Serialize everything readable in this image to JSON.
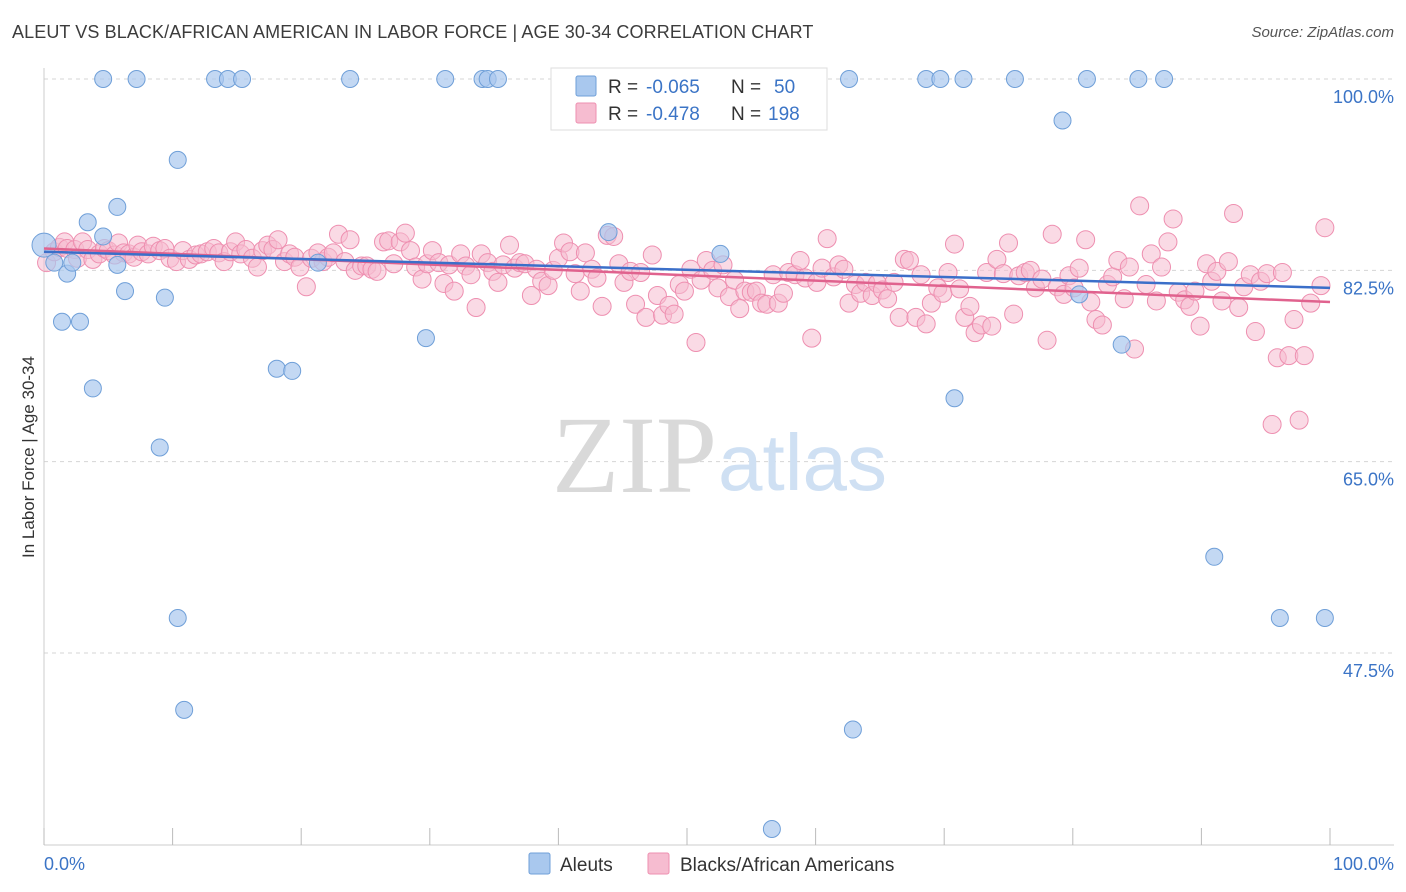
{
  "header": {
    "title": "ALEUT VS BLACK/AFRICAN AMERICAN IN LABOR FORCE | AGE 30-34 CORRELATION CHART",
    "source": "Source: ZipAtlas.com"
  },
  "legend": {
    "aleut": {
      "r_label": "R =",
      "r_value": "-0.065",
      "n_label": "N =",
      "n_value": "50"
    },
    "black": {
      "r_label": "R =",
      "r_value": "-0.478",
      "n_label": "N =",
      "n_value": "198"
    }
  },
  "bottom_legend": {
    "aleut": "Aleuts",
    "black": "Blacks/African Americans"
  },
  "watermark": {
    "zip": "ZIP",
    "atlas": "atlas"
  },
  "colors": {
    "aleut_fill": "#a9c8ee",
    "aleut_stroke": "#6f9fd8",
    "aleut_line": "#3b6fc9",
    "black_fill": "#f6bcd0",
    "black_stroke": "#ee8fb0",
    "black_line": "#e0628e",
    "tick": "#3b74c6",
    "grid": "#d5d5d5"
  },
  "chart_data": {
    "type": "scatter",
    "title": "ALEUT VS BLACK/AFRICAN AMERICAN IN LABOR FORCE | AGE 30-34 CORRELATION CHART",
    "xlabel": "",
    "ylabel": "In Labor Force | Age 30-34",
    "xlim": [
      0,
      100
    ],
    "ylim": [
      30,
      102
    ],
    "x_tick_labels": [
      "0.0%",
      "100.0%"
    ],
    "y_ticks": [
      100,
      82.5,
      65,
      47.5
    ],
    "y_tick_labels": [
      "100.0%",
      "82.5%",
      "65.0%",
      "47.5%"
    ],
    "series": [
      {
        "name": "Aleuts",
        "r": -0.065,
        "n": 50,
        "trend": {
          "x": [
            0,
            100
          ],
          "y": [
            84.2,
            80.9
          ]
        },
        "points": [
          [
            0,
            84.8
          ],
          [
            0.8,
            83.2
          ],
          [
            1.4,
            77.8
          ],
          [
            1.8,
            82.2
          ],
          [
            2.2,
            83.2
          ],
          [
            2.8,
            77.8
          ],
          [
            3.4,
            86.9
          ],
          [
            3.8,
            71.7
          ],
          [
            4.6,
            100
          ],
          [
            4.6,
            85.6
          ],
          [
            5.7,
            83.0
          ],
          [
            5.7,
            88.3
          ],
          [
            6.3,
            80.6
          ],
          [
            7.2,
            100
          ],
          [
            9.0,
            66.3
          ],
          [
            9.4,
            80.0
          ],
          [
            10.4,
            92.6
          ],
          [
            10.4,
            50.7
          ],
          [
            10.9,
            42.3
          ],
          [
            13.3,
            100
          ],
          [
            14.3,
            100
          ],
          [
            15.4,
            100
          ],
          [
            18.1,
            73.5
          ],
          [
            19.3,
            73.3
          ],
          [
            21.3,
            83.2
          ],
          [
            23.8,
            100
          ],
          [
            29.7,
            76.3
          ],
          [
            31.2,
            100
          ],
          [
            34.1,
            100
          ],
          [
            34.5,
            100
          ],
          [
            35.3,
            100
          ],
          [
            43.9,
            86.0
          ],
          [
            52.6,
            84.0
          ],
          [
            56.6,
            31.4
          ],
          [
            62.6,
            100
          ],
          [
            62.9,
            40.5
          ],
          [
            68.6,
            100
          ],
          [
            69.7,
            100
          ],
          [
            70.8,
            70.8
          ],
          [
            71.5,
            100
          ],
          [
            75.5,
            100
          ],
          [
            79.2,
            96.2
          ],
          [
            80.5,
            80.3
          ],
          [
            81.1,
            100
          ],
          [
            83.8,
            75.7
          ],
          [
            85.1,
            100
          ],
          [
            87.1,
            100
          ],
          [
            91.0,
            56.3
          ],
          [
            96.1,
            50.7
          ],
          [
            99.6,
            50.7
          ]
        ]
      },
      {
        "name": "Blacks/African Americans",
        "r": -0.478,
        "n": 198,
        "trend": {
          "x": [
            0,
            100
          ],
          "y": [
            84.5,
            79.6
          ]
        },
        "points": [
          [
            0.2,
            83.2
          ],
          [
            0.8,
            84.2
          ],
          [
            1.2,
            84.6
          ],
          [
            1.6,
            85.1
          ],
          [
            1.8,
            84.5
          ],
          [
            2.4,
            84.4
          ],
          [
            2.6,
            83.6
          ],
          [
            3.0,
            85.1
          ],
          [
            3.4,
            84.4
          ],
          [
            3.8,
            83.5
          ],
          [
            4.3,
            84.0
          ],
          [
            4.7,
            84.5
          ],
          [
            5.0,
            84.3
          ],
          [
            5.5,
            83.9
          ],
          [
            5.8,
            85.0
          ],
          [
            6.2,
            84.1
          ],
          [
            6.6,
            84.0
          ],
          [
            7.0,
            83.7
          ],
          [
            7.3,
            84.8
          ],
          [
            7.6,
            84.2
          ],
          [
            8.1,
            84.0
          ],
          [
            8.5,
            84.7
          ],
          [
            9.0,
            84.3
          ],
          [
            9.4,
            84.5
          ],
          [
            9.8,
            83.6
          ],
          [
            10.3,
            83.3
          ],
          [
            10.8,
            84.3
          ],
          [
            11.3,
            83.5
          ],
          [
            11.8,
            83.9
          ],
          [
            12.2,
            84.0
          ],
          [
            12.7,
            84.2
          ],
          [
            13.2,
            84.5
          ],
          [
            13.6,
            84.1
          ],
          [
            14.0,
            83.3
          ],
          [
            14.5,
            84.2
          ],
          [
            14.9,
            85.1
          ],
          [
            15.3,
            84.0
          ],
          [
            15.7,
            84.4
          ],
          [
            16.2,
            83.6
          ],
          [
            16.6,
            82.8
          ],
          [
            17.0,
            84.3
          ],
          [
            17.4,
            84.8
          ],
          [
            17.8,
            84.4
          ],
          [
            18.2,
            85.3
          ],
          [
            18.7,
            83.3
          ],
          [
            19.1,
            84.0
          ],
          [
            19.5,
            83.7
          ],
          [
            19.9,
            82.8
          ],
          [
            20.4,
            81.0
          ],
          [
            20.8,
            83.6
          ],
          [
            21.3,
            84.1
          ],
          [
            21.7,
            83.3
          ],
          [
            22.1,
            83.7
          ],
          [
            22.5,
            84.1
          ],
          [
            22.9,
            85.8
          ],
          [
            23.4,
            83.3
          ],
          [
            23.8,
            85.3
          ],
          [
            24.2,
            82.5
          ],
          [
            24.7,
            82.9
          ],
          [
            25.1,
            82.9
          ],
          [
            25.5,
            82.6
          ],
          [
            25.9,
            82.4
          ],
          [
            26.4,
            85.1
          ],
          [
            26.8,
            85.2
          ],
          [
            27.2,
            83.1
          ],
          [
            27.7,
            85.1
          ],
          [
            28.1,
            85.9
          ],
          [
            28.5,
            84.3
          ],
          [
            28.9,
            82.8
          ],
          [
            29.4,
            81.7
          ],
          [
            29.8,
            83.1
          ],
          [
            30.2,
            84.3
          ],
          [
            30.7,
            83.2
          ],
          [
            31.1,
            81.3
          ],
          [
            31.5,
            83.0
          ],
          [
            31.9,
            80.6
          ],
          [
            32.4,
            84.0
          ],
          [
            32.8,
            82.9
          ],
          [
            33.2,
            82.1
          ],
          [
            33.6,
            79.1
          ],
          [
            34.0,
            84.0
          ],
          [
            34.5,
            83.2
          ],
          [
            34.9,
            82.4
          ],
          [
            35.3,
            81.4
          ],
          [
            35.7,
            83.0
          ],
          [
            36.2,
            84.8
          ],
          [
            36.6,
            82.7
          ],
          [
            37.0,
            83.2
          ],
          [
            37.4,
            83.1
          ],
          [
            37.9,
            80.2
          ],
          [
            38.3,
            82.6
          ],
          [
            38.7,
            81.5
          ],
          [
            39.2,
            81.1
          ],
          [
            39.6,
            82.5
          ],
          [
            40.0,
            83.6
          ],
          [
            40.4,
            85.0
          ],
          [
            40.9,
            84.2
          ],
          [
            41.3,
            82.2
          ],
          [
            41.7,
            80.6
          ],
          [
            42.1,
            84.1
          ],
          [
            42.6,
            82.6
          ],
          [
            43.0,
            81.8
          ],
          [
            43.4,
            79.2
          ],
          [
            43.8,
            85.7
          ],
          [
            44.3,
            85.6
          ],
          [
            44.7,
            83.1
          ],
          [
            45.1,
            81.4
          ],
          [
            45.6,
            82.4
          ],
          [
            46.0,
            79.4
          ],
          [
            46.4,
            82.3
          ],
          [
            46.8,
            78.2
          ],
          [
            47.3,
            83.9
          ],
          [
            47.7,
            80.2
          ],
          [
            48.1,
            78.4
          ],
          [
            48.6,
            79.3
          ],
          [
            49.0,
            78.5
          ],
          [
            49.4,
            81.2
          ],
          [
            49.8,
            80.6
          ],
          [
            50.3,
            82.6
          ],
          [
            50.7,
            75.9
          ],
          [
            51.1,
            81.6
          ],
          [
            51.5,
            83.4
          ],
          [
            52.0,
            82.5
          ],
          [
            52.4,
            80.9
          ],
          [
            52.8,
            83.0
          ],
          [
            53.3,
            80.1
          ],
          [
            53.7,
            81.6
          ],
          [
            54.1,
            79.0
          ],
          [
            54.5,
            80.6
          ],
          [
            55.0,
            80.5
          ],
          [
            55.4,
            80.6
          ],
          [
            55.8,
            79.5
          ],
          [
            56.2,
            79.4
          ],
          [
            56.7,
            82.1
          ],
          [
            57.1,
            79.5
          ],
          [
            57.5,
            80.4
          ],
          [
            57.9,
            82.3
          ],
          [
            58.4,
            82.1
          ],
          [
            58.8,
            83.4
          ],
          [
            59.2,
            81.8
          ],
          [
            59.7,
            76.3
          ],
          [
            60.1,
            81.4
          ],
          [
            60.5,
            82.7
          ],
          [
            60.9,
            85.4
          ],
          [
            61.4,
            81.9
          ],
          [
            61.8,
            83.0
          ],
          [
            62.2,
            82.6
          ],
          [
            62.6,
            79.5
          ],
          [
            63.1,
            81.2
          ],
          [
            63.5,
            80.4
          ],
          [
            63.9,
            81.4
          ],
          [
            64.4,
            80.2
          ],
          [
            64.8,
            81.3
          ],
          [
            65.2,
            80.7
          ],
          [
            65.6,
            79.9
          ],
          [
            66.1,
            81.4
          ],
          [
            66.5,
            78.2
          ],
          [
            66.9,
            83.5
          ],
          [
            67.3,
            83.4
          ],
          [
            67.8,
            78.2
          ],
          [
            68.2,
            82.1
          ],
          [
            68.6,
            77.6
          ],
          [
            69.0,
            79.5
          ],
          [
            69.5,
            80.9
          ],
          [
            69.9,
            80.4
          ],
          [
            70.3,
            82.3
          ],
          [
            70.8,
            84.9
          ],
          [
            71.2,
            80.8
          ],
          [
            71.6,
            78.2
          ],
          [
            72.0,
            79.2
          ],
          [
            72.4,
            76.8
          ],
          [
            72.9,
            77.5
          ],
          [
            73.3,
            82.3
          ],
          [
            73.7,
            77.4
          ],
          [
            74.1,
            83.5
          ],
          [
            74.6,
            82.2
          ],
          [
            75.0,
            85.0
          ],
          [
            75.4,
            78.5
          ],
          [
            75.8,
            82.0
          ],
          [
            76.3,
            82.3
          ],
          [
            76.7,
            82.5
          ],
          [
            77.1,
            80.9
          ],
          [
            77.6,
            81.7
          ],
          [
            78.0,
            76.1
          ],
          [
            78.4,
            85.8
          ],
          [
            78.8,
            81.0
          ],
          [
            79.3,
            80.3
          ],
          [
            79.7,
            82.0
          ],
          [
            80.1,
            80.9
          ],
          [
            80.5,
            82.7
          ],
          [
            81.0,
            85.3
          ],
          [
            81.4,
            79.6
          ],
          [
            81.8,
            78.0
          ],
          [
            82.3,
            77.5
          ],
          [
            82.7,
            81.2
          ],
          [
            83.1,
            81.9
          ],
          [
            83.5,
            83.4
          ],
          [
            84.0,
            79.9
          ],
          [
            84.4,
            82.8
          ],
          [
            84.8,
            75.3
          ],
          [
            85.2,
            88.4
          ],
          [
            85.7,
            81.2
          ],
          [
            86.1,
            84.0
          ],
          [
            86.5,
            79.7
          ],
          [
            86.9,
            82.8
          ],
          [
            87.4,
            85.1
          ],
          [
            87.8,
            87.2
          ],
          [
            88.2,
            80.5
          ],
          [
            88.7,
            79.8
          ],
          [
            89.1,
            79.2
          ],
          [
            89.5,
            80.6
          ],
          [
            89.9,
            77.4
          ],
          [
            90.4,
            83.1
          ],
          [
            90.8,
            81.5
          ],
          [
            91.2,
            82.4
          ],
          [
            91.6,
            79.7
          ],
          [
            92.1,
            83.3
          ],
          [
            92.5,
            87.7
          ],
          [
            92.9,
            79.1
          ],
          [
            93.3,
            81.0
          ],
          [
            93.8,
            82.1
          ],
          [
            94.2,
            76.9
          ],
          [
            94.6,
            81.5
          ],
          [
            95.1,
            82.2
          ],
          [
            95.5,
            68.4
          ],
          [
            95.9,
            74.5
          ],
          [
            96.3,
            82.3
          ],
          [
            96.8,
            74.7
          ],
          [
            97.2,
            78.0
          ],
          [
            97.6,
            68.8
          ],
          [
            98.0,
            74.7
          ],
          [
            98.5,
            79.5
          ],
          [
            99.3,
            81.1
          ],
          [
            99.6,
            86.4
          ]
        ]
      }
    ]
  }
}
